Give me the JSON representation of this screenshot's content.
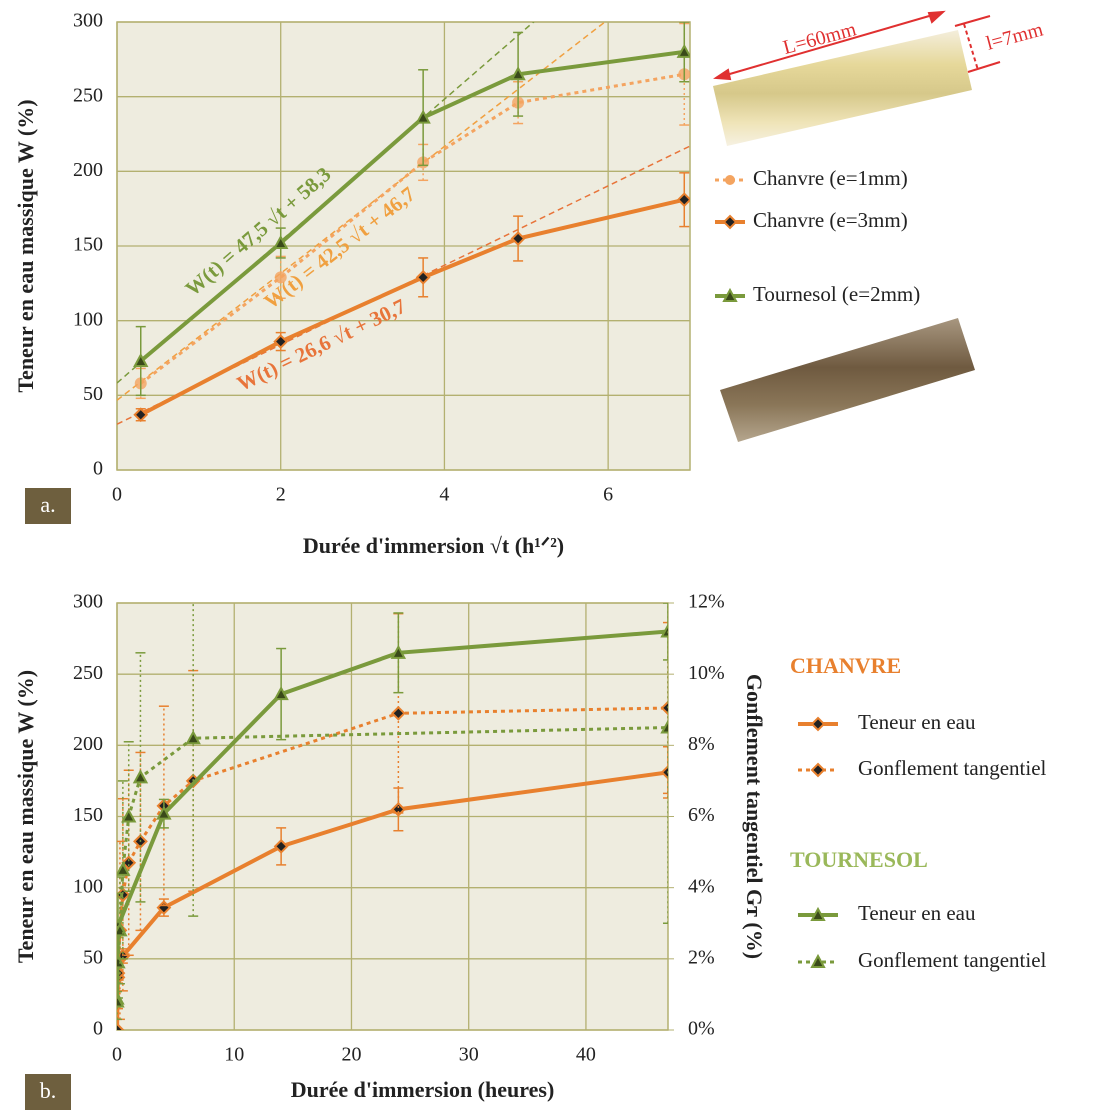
{
  "chart_data": [
    {
      "type": "line",
      "panel_label": "a.",
      "xlabel": "Durée d'immersion √t (h¹ᐟ²)",
      "ylabel": "Teneur en eau massique W (%)",
      "xlim": [
        0,
        7
      ],
      "ylim": [
        0,
        300
      ],
      "xticks": [
        0,
        2,
        4,
        6
      ],
      "yticks": [
        0,
        50,
        100,
        150,
        200,
        250,
        300
      ],
      "grid": true,
      "series": [
        {
          "name": "Chanvre (e=1mm)",
          "color": "#f4a460",
          "dash": true,
          "marker": "circle",
          "x": [
            0.29,
            2,
            3.74,
            4.9,
            6.93
          ],
          "values": [
            58,
            129,
            206,
            246,
            265
          ],
          "errors": [
            10,
            14,
            12,
            14,
            34
          ]
        },
        {
          "name": "Chanvre (e=3mm)",
          "color": "#e8802e",
          "dash": false,
          "marker": "diamond",
          "x": [
            0.29,
            2,
            3.74,
            4.9,
            6.93
          ],
          "values": [
            37,
            86,
            129,
            155,
            181
          ],
          "errors": [
            4,
            6,
            13,
            15,
            18
          ]
        },
        {
          "name": "Tournesol (e=2mm)",
          "color": "#7a9a3c",
          "dash": false,
          "marker": "triangle",
          "x": [
            0.29,
            2,
            3.74,
            4.9,
            6.93
          ],
          "values": [
            73,
            152,
            236,
            265,
            280
          ],
          "errors": [
            23,
            10,
            32,
            28,
            20
          ]
        }
      ],
      "fits": [
        {
          "label": "W(t) = 47,5 √t + 58,3",
          "slope": 47.5,
          "intercept": 58.3,
          "color": "#7a9a3c"
        },
        {
          "label": "W(t) = 42,5 √t + 46,7",
          "slope": 42.5,
          "intercept": 46.7,
          "color": "#f0a040"
        },
        {
          "label": "W(t) = 26,6 √t + 30,7",
          "slope": 26.6,
          "intercept": 30.7,
          "color": "#e8743a"
        }
      ],
      "annotations": [
        "L=60mm",
        "l=7mm"
      ]
    },
    {
      "type": "line",
      "panel_label": "b.",
      "xlabel": "Durée d'immersion (heures)",
      "ylabel": "Teneur en eau massique W (%)",
      "y2label": "Gonflement tangentiel Gᴛ (%)",
      "xlim": [
        0,
        47
      ],
      "ylim": [
        0,
        300
      ],
      "y2lim": [
        0,
        12
      ],
      "xticks": [
        0,
        10,
        20,
        30,
        40
      ],
      "yticks": [
        0,
        50,
        100,
        150,
        200,
        250,
        300
      ],
      "y2ticks": [
        {
          "value": 0,
          "label": "0%"
        },
        {
          "value": 2,
          "label": "2%"
        },
        {
          "value": 4,
          "label": "4%"
        },
        {
          "value": 6,
          "label": "6%"
        },
        {
          "value": 8,
          "label": "8%"
        },
        {
          "value": 10,
          "label": "10%"
        },
        {
          "value": 12,
          "label": "12%"
        }
      ],
      "grid": true,
      "legend_groups": [
        {
          "title": "CHANVRE",
          "color": "#e8802e"
        },
        {
          "title": "TOURNESOL",
          "color": "#9ab85a"
        }
      ],
      "series": [
        {
          "name": "Teneur en eau",
          "group": "CHANVRE",
          "color": "#e8802e",
          "dash": false,
          "marker": "diamond",
          "x": [
            0,
            0.083,
            0.5,
            4,
            14,
            24,
            47
          ],
          "values": [
            0,
            37,
            52,
            86,
            129,
            155,
            181
          ],
          "errors": [
            0,
            4,
            5,
            6,
            13,
            15,
            18
          ]
        },
        {
          "name": "Gonflement tangentiel",
          "group": "CHANVRE",
          "color": "#e8802e",
          "dash": true,
          "marker": "diamond",
          "axis": "y2",
          "x": [
            0,
            0.083,
            0.25,
            0.5,
            1,
            2,
            4,
            6.5,
            24,
            47
          ],
          "values": [
            0,
            1.6,
            2.8,
            3.8,
            4.7,
            5.3,
            6.3,
            7.0,
            8.9,
            9.05
          ],
          "errors": [
            0,
            1,
            2.5,
            2.7,
            2.6,
            2.5,
            2.8,
            3.1,
            2.8,
            2.4
          ]
        },
        {
          "name": "Teneur en eau",
          "group": "TOURNESOL",
          "color": "#7a9a3c",
          "dash": false,
          "marker": "triangle",
          "x": [
            0,
            0.083,
            4,
            14,
            24,
            47
          ],
          "values": [
            22,
            73,
            152,
            236,
            265,
            280
          ],
          "errors": [
            5,
            23,
            10,
            32,
            28,
            20
          ]
        },
        {
          "name": "Gonflement tangentiel",
          "group": "TOURNESOL",
          "color": "#7a9a3c",
          "dash": true,
          "marker": "triangle",
          "axis": "y2",
          "x": [
            0,
            0.083,
            0.25,
            0.5,
            1,
            2,
            6.5,
            47
          ],
          "values": [
            0.8,
            1.9,
            2.8,
            4.5,
            6.0,
            7.1,
            8.2,
            8.5
          ],
          "errors": [
            0.5,
            1,
            1.5,
            2.5,
            2.1,
            3.5,
            5,
            5.5
          ]
        }
      ]
    }
  ]
}
